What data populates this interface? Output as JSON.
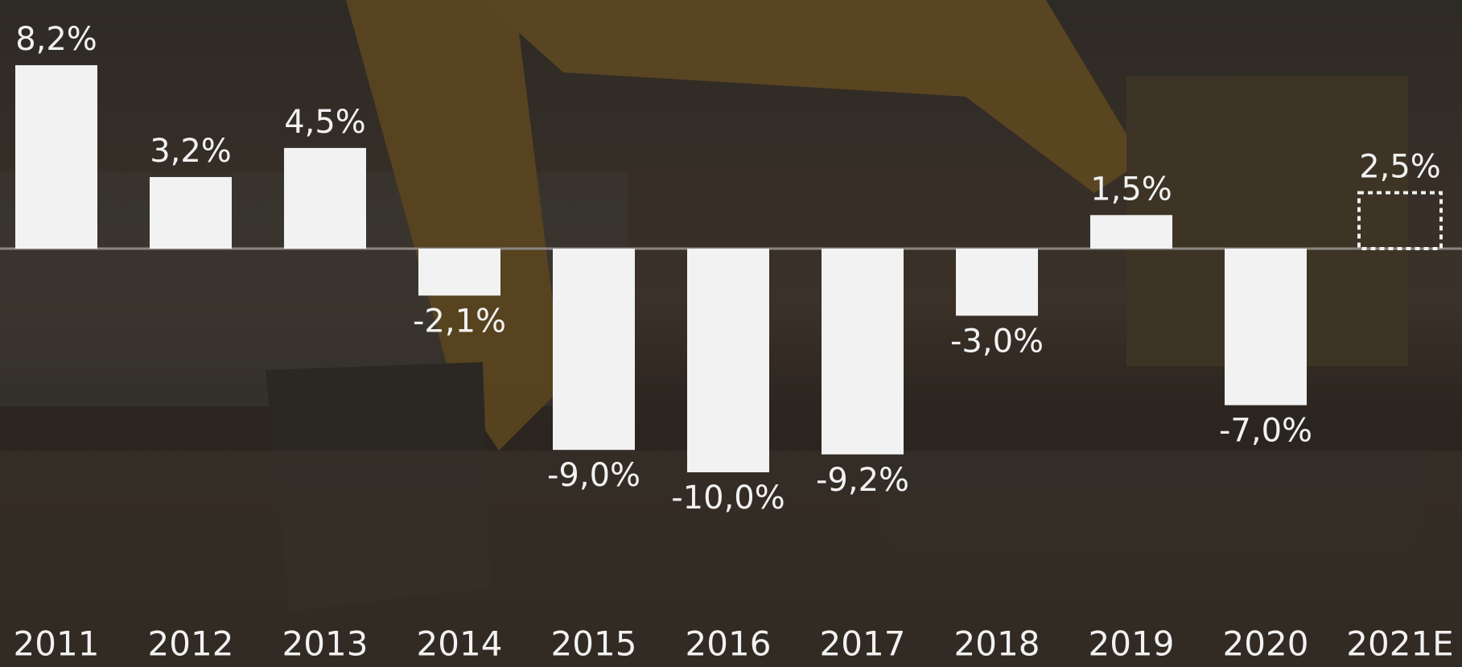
{
  "chart_data": {
    "type": "bar",
    "categories": [
      "2011",
      "2012",
      "2013",
      "2014",
      "2015",
      "2016",
      "2017",
      "2018",
      "2019",
      "2020",
      "2021E"
    ],
    "values": [
      8.2,
      3.2,
      4.5,
      -2.1,
      -9.0,
      -10.0,
      -9.2,
      -3.0,
      1.5,
      -7.0,
      2.5
    ],
    "value_labels": [
      "8,2%",
      "3,2%",
      "4,5%",
      "-2,1%",
      "-9,0%",
      "-10,0%",
      "-9,2%",
      "-3,0%",
      "1,5%",
      "-7,0%",
      "2,5%"
    ],
    "dashed": [
      false,
      false,
      false,
      false,
      false,
      false,
      false,
      false,
      false,
      false,
      true
    ],
    "color": "#f2f2f2"
  }
}
